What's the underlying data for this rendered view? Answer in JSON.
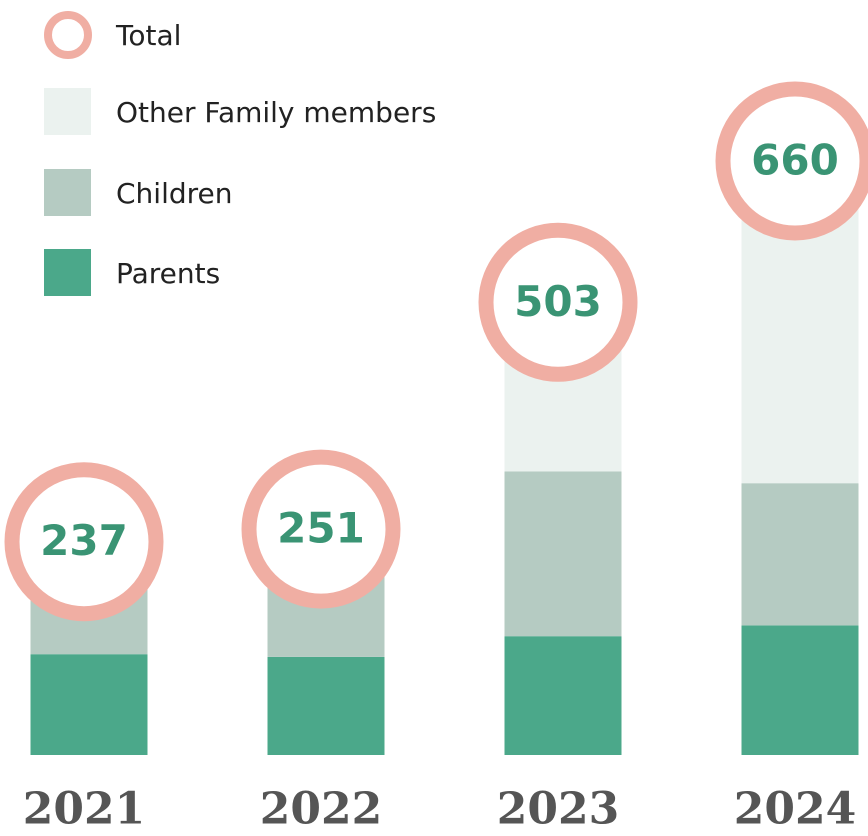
{
  "chart_data": {
    "type": "stacked-bar",
    "categories": [
      "2021",
      "2022",
      "2023",
      "2024"
    ],
    "series": [
      {
        "name": "Parents",
        "color": "#4ba88a",
        "values": [
          112,
          109,
          132,
          144
        ]
      },
      {
        "name": "Children",
        "color": "#b5cbc2",
        "values": [
          125,
          142,
          183,
          158
        ]
      },
      {
        "name": "Other Family members",
        "color": "#ebf2ef",
        "values": [
          0,
          0,
          188,
          358
        ]
      }
    ],
    "total": {
      "name": "Total",
      "color": "#f0aea3",
      "values": [
        237,
        251,
        503,
        660
      ]
    }
  }
}
